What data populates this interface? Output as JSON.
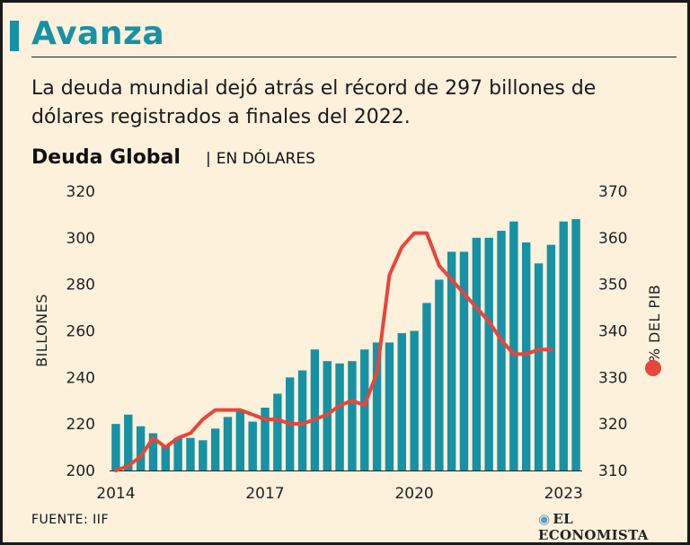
{
  "header": {
    "title": "Avanza",
    "subtitle": "La deuda mundial dejó atrás el récord de 297 billones de dólares registrados a finales del 2022."
  },
  "chart_header": {
    "title": "Deuda Global",
    "separator": "|",
    "unit": "EN DÓLARES"
  },
  "footer": {
    "source": "FUENTE: IIF",
    "brand": "EL ECONOMISTA"
  },
  "colors": {
    "bar": "#1791a4",
    "line": "#e8453c",
    "accent": "#1791a4",
    "background": "#fdf1dc"
  },
  "chart_data": {
    "type": "bar",
    "title": "Deuda Global",
    "subtitle": "EN DÓLARES",
    "x_tick_labels": [
      "2014",
      "2017",
      "2020",
      "2023"
    ],
    "x_tick_index": [
      0,
      12,
      24,
      36
    ],
    "ylabel": "BILLONES",
    "ylim": [
      200,
      320
    ],
    "yticks": [
      200,
      220,
      240,
      260,
      280,
      300,
      320
    ],
    "y2label": "% DEL PIB",
    "y2lim": [
      310,
      370
    ],
    "y2ticks": [
      310,
      320,
      330,
      340,
      350,
      360,
      370
    ],
    "grid": false,
    "series": [
      {
        "name": "Deuda global (billones de dólares)",
        "type": "bar",
        "axis": "left",
        "values": [
          220,
          224,
          219,
          216,
          211,
          214,
          214,
          213,
          218,
          223,
          226,
          221,
          227,
          233,
          240,
          243,
          252,
          247,
          246,
          247,
          252,
          255,
          255,
          259,
          260,
          272,
          282,
          294,
          294,
          300,
          300,
          303,
          307,
          298,
          289,
          297,
          307,
          308
        ]
      },
      {
        "name": "% DEL PIB",
        "type": "line",
        "axis": "right",
        "values": [
          310,
          311,
          313,
          317,
          315,
          317,
          318,
          321,
          323,
          323,
          323,
          322,
          321,
          321,
          320,
          320,
          321,
          322,
          324,
          325,
          324,
          331,
          352,
          358,
          361,
          361,
          354,
          351,
          348,
          345,
          342,
          338,
          335,
          335,
          336,
          336
        ]
      }
    ]
  }
}
